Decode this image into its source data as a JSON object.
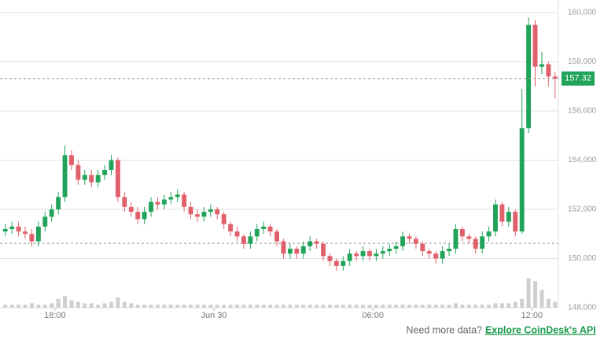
{
  "chart_data": {
    "type": "candlestick",
    "open": [
      151.1,
      151.2,
      151.3,
      151.1,
      151.0,
      150.7,
      151.3,
      151.7,
      152.0,
      152.5,
      154.2,
      153.8,
      153.2,
      153.4,
      153.1,
      153.4,
      153.6,
      154.0,
      152.5,
      152.1,
      151.9,
      151.6,
      151.9,
      152.3,
      152.2,
      152.4,
      152.5,
      152.6,
      152.1,
      151.8,
      151.7,
      151.9,
      152.0,
      151.8,
      151.4,
      151.1,
      150.9,
      150.6,
      150.9,
      151.2,
      151.3,
      151.1,
      150.7,
      150.2,
      150.4,
      150.2,
      150.5,
      150.7,
      150.6,
      150.1,
      149.9,
      149.7,
      149.9,
      150.2,
      150.1,
      150.3,
      150.1,
      150.2,
      150.3,
      150.4,
      150.5,
      150.9,
      150.8,
      150.6,
      150.3,
      150.2,
      150.0,
      150.3,
      150.4,
      151.2,
      150.9,
      150.8,
      150.4,
      150.9,
      151.1,
      152.2,
      151.5,
      151.9,
      151.1,
      155.3,
      159.5,
      157.8,
      157.9,
      157.4
    ],
    "high": [
      151.4,
      151.5,
      151.5,
      151.3,
      151.2,
      151.5,
      151.9,
      152.2,
      152.7,
      154.6,
      154.4,
      154.0,
      153.6,
      153.6,
      153.6,
      153.8,
      154.2,
      154.1,
      152.7,
      152.3,
      152.1,
      152.1,
      152.5,
      152.5,
      152.6,
      152.7,
      152.8,
      152.7,
      152.3,
      152.0,
      152.1,
      152.2,
      152.1,
      151.9,
      151.5,
      151.3,
      151.0,
      151.1,
      151.4,
      151.5,
      151.4,
      151.2,
      150.8,
      150.6,
      150.5,
      150.7,
      150.9,
      150.8,
      150.7,
      150.2,
      150.0,
      150.1,
      150.4,
      150.3,
      150.5,
      150.4,
      150.4,
      150.5,
      150.6,
      150.7,
      151.1,
      151.0,
      150.9,
      150.7,
      150.4,
      150.3,
      150.5,
      150.6,
      151.4,
      151.3,
      151.0,
      150.9,
      151.1,
      151.3,
      152.4,
      152.3,
      152.1,
      152.0,
      156.9,
      159.8,
      159.7,
      158.4,
      158.0,
      157.6
    ],
    "low": [
      150.9,
      151.0,
      150.9,
      150.8,
      150.5,
      150.5,
      151.1,
      151.5,
      151.8,
      152.3,
      153.6,
      153.0,
      153.0,
      152.9,
      152.9,
      153.2,
      153.4,
      152.3,
      151.9,
      151.7,
      151.4,
      151.4,
      151.7,
      152.0,
      152.0,
      152.2,
      152.3,
      151.9,
      151.6,
      151.5,
      151.5,
      151.7,
      151.6,
      151.2,
      150.9,
      150.7,
      150.4,
      150.4,
      150.7,
      151.0,
      150.9,
      150.5,
      150.0,
      150.0,
      150.0,
      150.0,
      150.3,
      150.4,
      149.9,
      149.7,
      149.5,
      149.5,
      149.7,
      149.9,
      149.9,
      149.9,
      149.9,
      150.0,
      150.1,
      150.2,
      150.3,
      150.6,
      150.4,
      150.1,
      150.0,
      149.8,
      149.8,
      150.1,
      150.2,
      150.7,
      150.6,
      150.2,
      150.2,
      150.7,
      150.9,
      151.3,
      151.3,
      150.9,
      151.0,
      155.1,
      157.0,
      157.5,
      157.0,
      156.5
    ],
    "close": [
      151.2,
      151.3,
      151.1,
      151.0,
      150.7,
      151.3,
      151.7,
      152.0,
      152.5,
      154.2,
      153.8,
      153.2,
      153.4,
      153.1,
      153.4,
      153.6,
      154.0,
      152.5,
      152.1,
      151.9,
      151.6,
      151.9,
      152.3,
      152.2,
      152.4,
      152.5,
      152.6,
      152.1,
      151.8,
      151.7,
      151.9,
      152.0,
      151.8,
      151.4,
      151.1,
      150.9,
      150.6,
      150.9,
      151.2,
      151.3,
      151.1,
      150.7,
      150.2,
      150.4,
      150.2,
      150.5,
      150.7,
      150.6,
      150.1,
      149.9,
      149.7,
      149.9,
      150.2,
      150.1,
      150.3,
      150.1,
      150.2,
      150.3,
      150.4,
      150.5,
      150.9,
      150.8,
      150.6,
      150.3,
      150.2,
      150.0,
      150.3,
      150.4,
      151.2,
      150.9,
      150.8,
      150.4,
      150.9,
      151.1,
      152.2,
      151.5,
      151.9,
      151.1,
      155.3,
      159.5,
      157.8,
      157.9,
      157.4,
      157.32
    ],
    "volume": [
      1,
      1,
      1,
      1,
      1.5,
      1,
      1,
      1.5,
      3,
      4,
      2.5,
      2,
      1.5,
      1.5,
      1,
      1.5,
      2,
      3.5,
      2,
      1.5,
      1,
      1,
      1,
      1,
      1,
      1,
      1,
      1,
      1,
      1,
      1,
      1,
      1,
      1,
      1,
      1,
      1,
      1,
      1,
      1,
      1,
      1,
      1,
      1,
      1,
      1,
      1,
      1,
      1,
      1,
      1,
      1,
      1,
      1,
      1,
      1,
      1,
      1,
      1,
      1,
      1,
      1,
      1,
      1,
      1,
      1,
      1,
      1,
      1.5,
      1,
      1,
      1,
      1,
      1,
      1.5,
      1.5,
      1.5,
      2,
      3,
      10,
      9,
      6,
      3,
      2
    ],
    "volume_ylim": [
      0,
      12
    ],
    "up_color": "#22a35a",
    "down_color": "#e0606b",
    "volume_color": "#cfcfcf",
    "xlim": [
      -0.3,
      84
    ],
    "xticks": [
      {
        "value": 8,
        "label": "18:00"
      },
      {
        "value": 32,
        "label": "Jun 30"
      },
      {
        "value": 56,
        "label": "06:00"
      },
      {
        "value": 80,
        "label": "12:00"
      }
    ],
    "ylim": [
      148,
      160
    ],
    "yticks": [
      {
        "value": 148,
        "label": "148,000"
      },
      {
        "value": 150,
        "label": "150,000"
      },
      {
        "value": 152,
        "label": "152,000"
      },
      {
        "value": 154,
        "label": "154,000"
      },
      {
        "value": 156,
        "label": "156,000"
      },
      {
        "value": 158,
        "label": "158,000"
      },
      {
        "value": 160,
        "label": "160,000"
      }
    ],
    "grid": true,
    "last_price": 157.32,
    "reference_line": 150.62,
    "footer": {
      "text": "Need more data?",
      "link": "Explore CoinDesk's API"
    }
  }
}
